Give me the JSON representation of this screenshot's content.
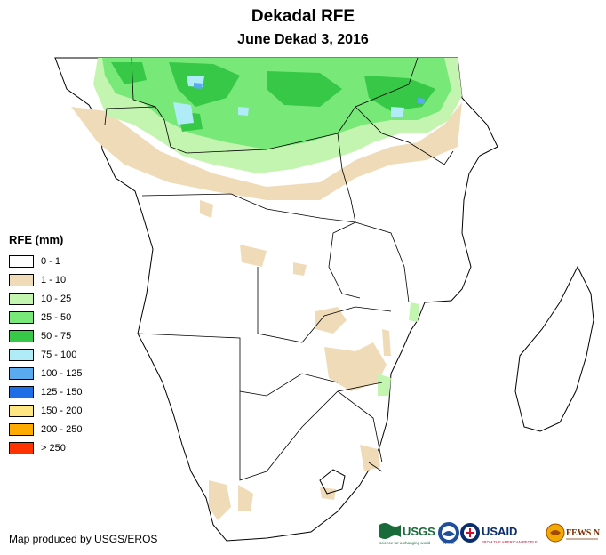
{
  "title": "Dekadal RFE",
  "subtitle": "June Dekad 3, 2016",
  "legend": {
    "title": "RFE (mm)",
    "items": [
      {
        "label": "0 - 1",
        "color": "#ffffff"
      },
      {
        "label": "1 - 10",
        "color": "#f0dbb9"
      },
      {
        "label": "10 - 25",
        "color": "#c3f5b0"
      },
      {
        "label": "25 - 50",
        "color": "#78e878"
      },
      {
        "label": "50 - 75",
        "color": "#36c846"
      },
      {
        "label": "75 - 100",
        "color": "#b0ecf8"
      },
      {
        "label": "100 - 125",
        "color": "#5aaaf0"
      },
      {
        "label": "125 - 150",
        "color": "#1e6ee6"
      },
      {
        "label": "150 - 200",
        "color": "#ffe682"
      },
      {
        "label": "200 - 250",
        "color": "#ffaa00"
      },
      {
        "label": "> 250",
        "color": "#ff3200"
      }
    ]
  },
  "credit": "Map produced by USGS/EROS",
  "logos": {
    "usgs": "USGS",
    "usgs_tagline": "science for a changing world",
    "noaa": "NOAA",
    "usaid": "USAID",
    "usaid_tagline": "FROM THE AMERICAN PEOPLE",
    "fewsnet": "FEWS NET"
  }
}
